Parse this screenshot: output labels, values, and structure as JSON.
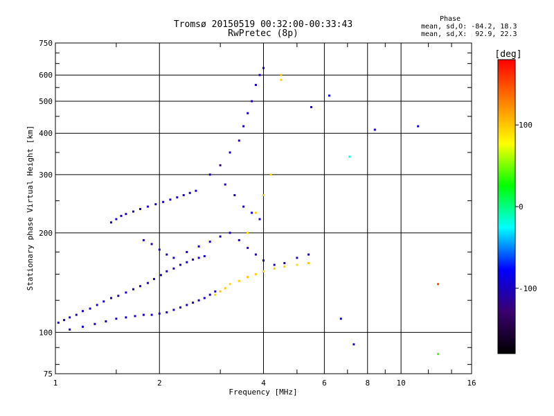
{
  "chart_data": {
    "type": "scatter",
    "title": "Tromsø 20150519 00:32:00-00:33:43",
    "subtitle": "RwPretec (8p)",
    "xlabel": "Frequency [MHz]",
    "ylabel": "Stationary phase Virtual Height [km]",
    "x_scale": "log",
    "y_scale": "log",
    "xlim": [
      1,
      16
    ],
    "ylim": [
      75,
      750
    ],
    "x_ticks": [
      1,
      2,
      4,
      6,
      8,
      10,
      16
    ],
    "x_tick_labels": [
      "1",
      "2",
      "4",
      "6",
      "8",
      "10",
      "16"
    ],
    "y_ticks": [
      75,
      100,
      200,
      300,
      400,
      500,
      600,
      750
    ],
    "y_tick_labels": [
      "75",
      "100",
      "200",
      "300",
      "400",
      "500",
      "600",
      "750"
    ],
    "grid": true,
    "legend": {
      "title": "Phase",
      "mode_o": "mean, sd,O: -84.2, 18.3",
      "mode_x": "mean, sd,X:  92.9, 22.3"
    },
    "colorbar": {
      "label": "[deg]",
      "range": [
        -180,
        180
      ],
      "ticks": [
        100,
        0,
        -100
      ],
      "tick_labels": [
        "100",
        "0",
        "-100"
      ],
      "colors": [
        "#000000",
        "#3a006e",
        "#0000ff",
        "#00ffff",
        "#00ff00",
        "#ffff00",
        "#ff8000",
        "#ff0000"
      ]
    },
    "series": [
      {
        "trace": "low_O",
        "points": [
          [
            1.02,
            107,
            -95
          ],
          [
            1.06,
            109,
            -100
          ],
          [
            1.1,
            111,
            -90
          ],
          [
            1.15,
            113,
            -95
          ],
          [
            1.2,
            116,
            -100
          ],
          [
            1.26,
            118,
            -92
          ],
          [
            1.32,
            121,
            -98
          ],
          [
            1.38,
            124,
            -100
          ],
          [
            1.45,
            127,
            -95
          ],
          [
            1.52,
            129,
            -105
          ],
          [
            1.6,
            132,
            -100
          ],
          [
            1.68,
            135,
            -98
          ],
          [
            1.76,
            138,
            -100
          ],
          [
            1.85,
            141,
            -110
          ],
          [
            1.93,
            145,
            -105
          ],
          [
            2.02,
            149,
            -100
          ],
          [
            2.1,
            153,
            -98
          ],
          [
            2.2,
            156,
            -105
          ],
          [
            2.3,
            160,
            -100
          ],
          [
            2.4,
            163,
            -95
          ],
          [
            2.5,
            166,
            -100
          ],
          [
            2.6,
            168,
            -100
          ],
          [
            2.7,
            170,
            -95
          ]
        ]
      },
      {
        "trace": "low_O_lower",
        "points": [
          [
            1.1,
            102,
            -100
          ],
          [
            1.2,
            104,
            -95
          ],
          [
            1.3,
            106,
            -100
          ],
          [
            1.4,
            108,
            -98
          ],
          [
            1.5,
            110,
            -100
          ],
          [
            1.6,
            111,
            -95
          ],
          [
            1.7,
            112,
            -100
          ],
          [
            1.8,
            113,
            -98
          ],
          [
            1.9,
            113,
            -95
          ],
          [
            2.0,
            114,
            -100
          ],
          [
            2.1,
            115,
            -98
          ],
          [
            2.2,
            117,
            -95
          ],
          [
            2.3,
            119,
            -100
          ],
          [
            2.4,
            121,
            -105
          ],
          [
            2.5,
            123,
            -100
          ],
          [
            2.6,
            125,
            -100
          ],
          [
            2.7,
            127,
            -98
          ],
          [
            2.8,
            130,
            -100
          ],
          [
            2.9,
            133,
            -95
          ]
        ]
      },
      {
        "trace": "F2_upper_O",
        "points": [
          [
            1.45,
            215,
            -95
          ],
          [
            1.5,
            220,
            -100
          ],
          [
            1.55,
            225,
            -98
          ],
          [
            1.6,
            228,
            -100
          ],
          [
            1.68,
            232,
            -105
          ],
          [
            1.76,
            236,
            -100
          ],
          [
            1.85,
            240,
            -98
          ],
          [
            1.95,
            244,
            -100
          ],
          [
            2.05,
            248,
            -95
          ],
          [
            2.15,
            252,
            -100
          ],
          [
            2.25,
            256,
            -98
          ],
          [
            2.35,
            260,
            -100
          ],
          [
            2.45,
            264,
            -95
          ],
          [
            2.55,
            268,
            -100
          ]
        ]
      },
      {
        "trace": "mid_blue",
        "points": [
          [
            1.8,
            190,
            -110
          ],
          [
            1.9,
            185,
            -115
          ],
          [
            2.0,
            178,
            -110
          ],
          [
            2.1,
            172,
            -105
          ],
          [
            2.2,
            168,
            -100
          ],
          [
            2.4,
            175,
            -100
          ],
          [
            2.6,
            182,
            -95
          ],
          [
            2.8,
            188,
            -100
          ],
          [
            3.0,
            195,
            -105
          ],
          [
            3.2,
            200,
            -100
          ],
          [
            3.4,
            190,
            -110
          ],
          [
            3.6,
            180,
            -115
          ],
          [
            3.8,
            172,
            -110
          ],
          [
            4.0,
            165,
            -100
          ],
          [
            4.3,
            160,
            -105
          ],
          [
            4.6,
            162,
            -110
          ],
          [
            5.0,
            168,
            -100
          ],
          [
            5.4,
            172,
            -105
          ]
        ]
      },
      {
        "trace": "high_spread",
        "points": [
          [
            2.8,
            300,
            -110
          ],
          [
            3.0,
            320,
            -120
          ],
          [
            3.2,
            350,
            -100
          ],
          [
            3.4,
            380,
            -115
          ],
          [
            3.5,
            420,
            -105
          ],
          [
            3.6,
            460,
            -95
          ],
          [
            3.7,
            500,
            -110
          ],
          [
            3.8,
            560,
            -100
          ],
          [
            3.9,
            600,
            -105
          ],
          [
            4.0,
            630,
            -100
          ],
          [
            3.1,
            280,
            -110
          ],
          [
            3.3,
            260,
            -100
          ],
          [
            3.5,
            240,
            -105
          ],
          [
            3.7,
            230,
            -95
          ],
          [
            3.9,
            220,
            -100
          ]
        ]
      },
      {
        "trace": "X_mode",
        "points": [
          [
            2.9,
            130,
            95
          ],
          [
            3.0,
            133,
            100
          ],
          [
            3.1,
            136,
            98
          ],
          [
            3.2,
            140,
            92
          ],
          [
            3.4,
            143,
            95
          ],
          [
            3.6,
            147,
            100
          ],
          [
            3.8,
            150,
            95
          ],
          [
            4.0,
            153,
            90
          ],
          [
            4.3,
            156,
            100
          ],
          [
            4.6,
            158,
            95
          ],
          [
            5.0,
            160,
            92
          ],
          [
            5.4,
            162,
            98
          ],
          [
            3.6,
            200,
            90
          ],
          [
            3.8,
            230,
            95
          ],
          [
            4.0,
            260,
            100
          ],
          [
            4.2,
            300,
            92
          ],
          [
            4.5,
            600,
            98
          ],
          [
            4.5,
            580,
            95
          ]
        ]
      },
      {
        "trace": "sparse",
        "points": [
          [
            5.5,
            480,
            -110
          ],
          [
            6.2,
            520,
            -90
          ],
          [
            7.1,
            340,
            -20
          ],
          [
            8.4,
            410,
            -100
          ],
          [
            11.2,
            420,
            -95
          ],
          [
            12.8,
            140,
            150
          ],
          [
            12.8,
            86,
            40
          ],
          [
            6.7,
            110,
            -80
          ],
          [
            7.3,
            92,
            -100
          ]
        ]
      }
    ]
  }
}
